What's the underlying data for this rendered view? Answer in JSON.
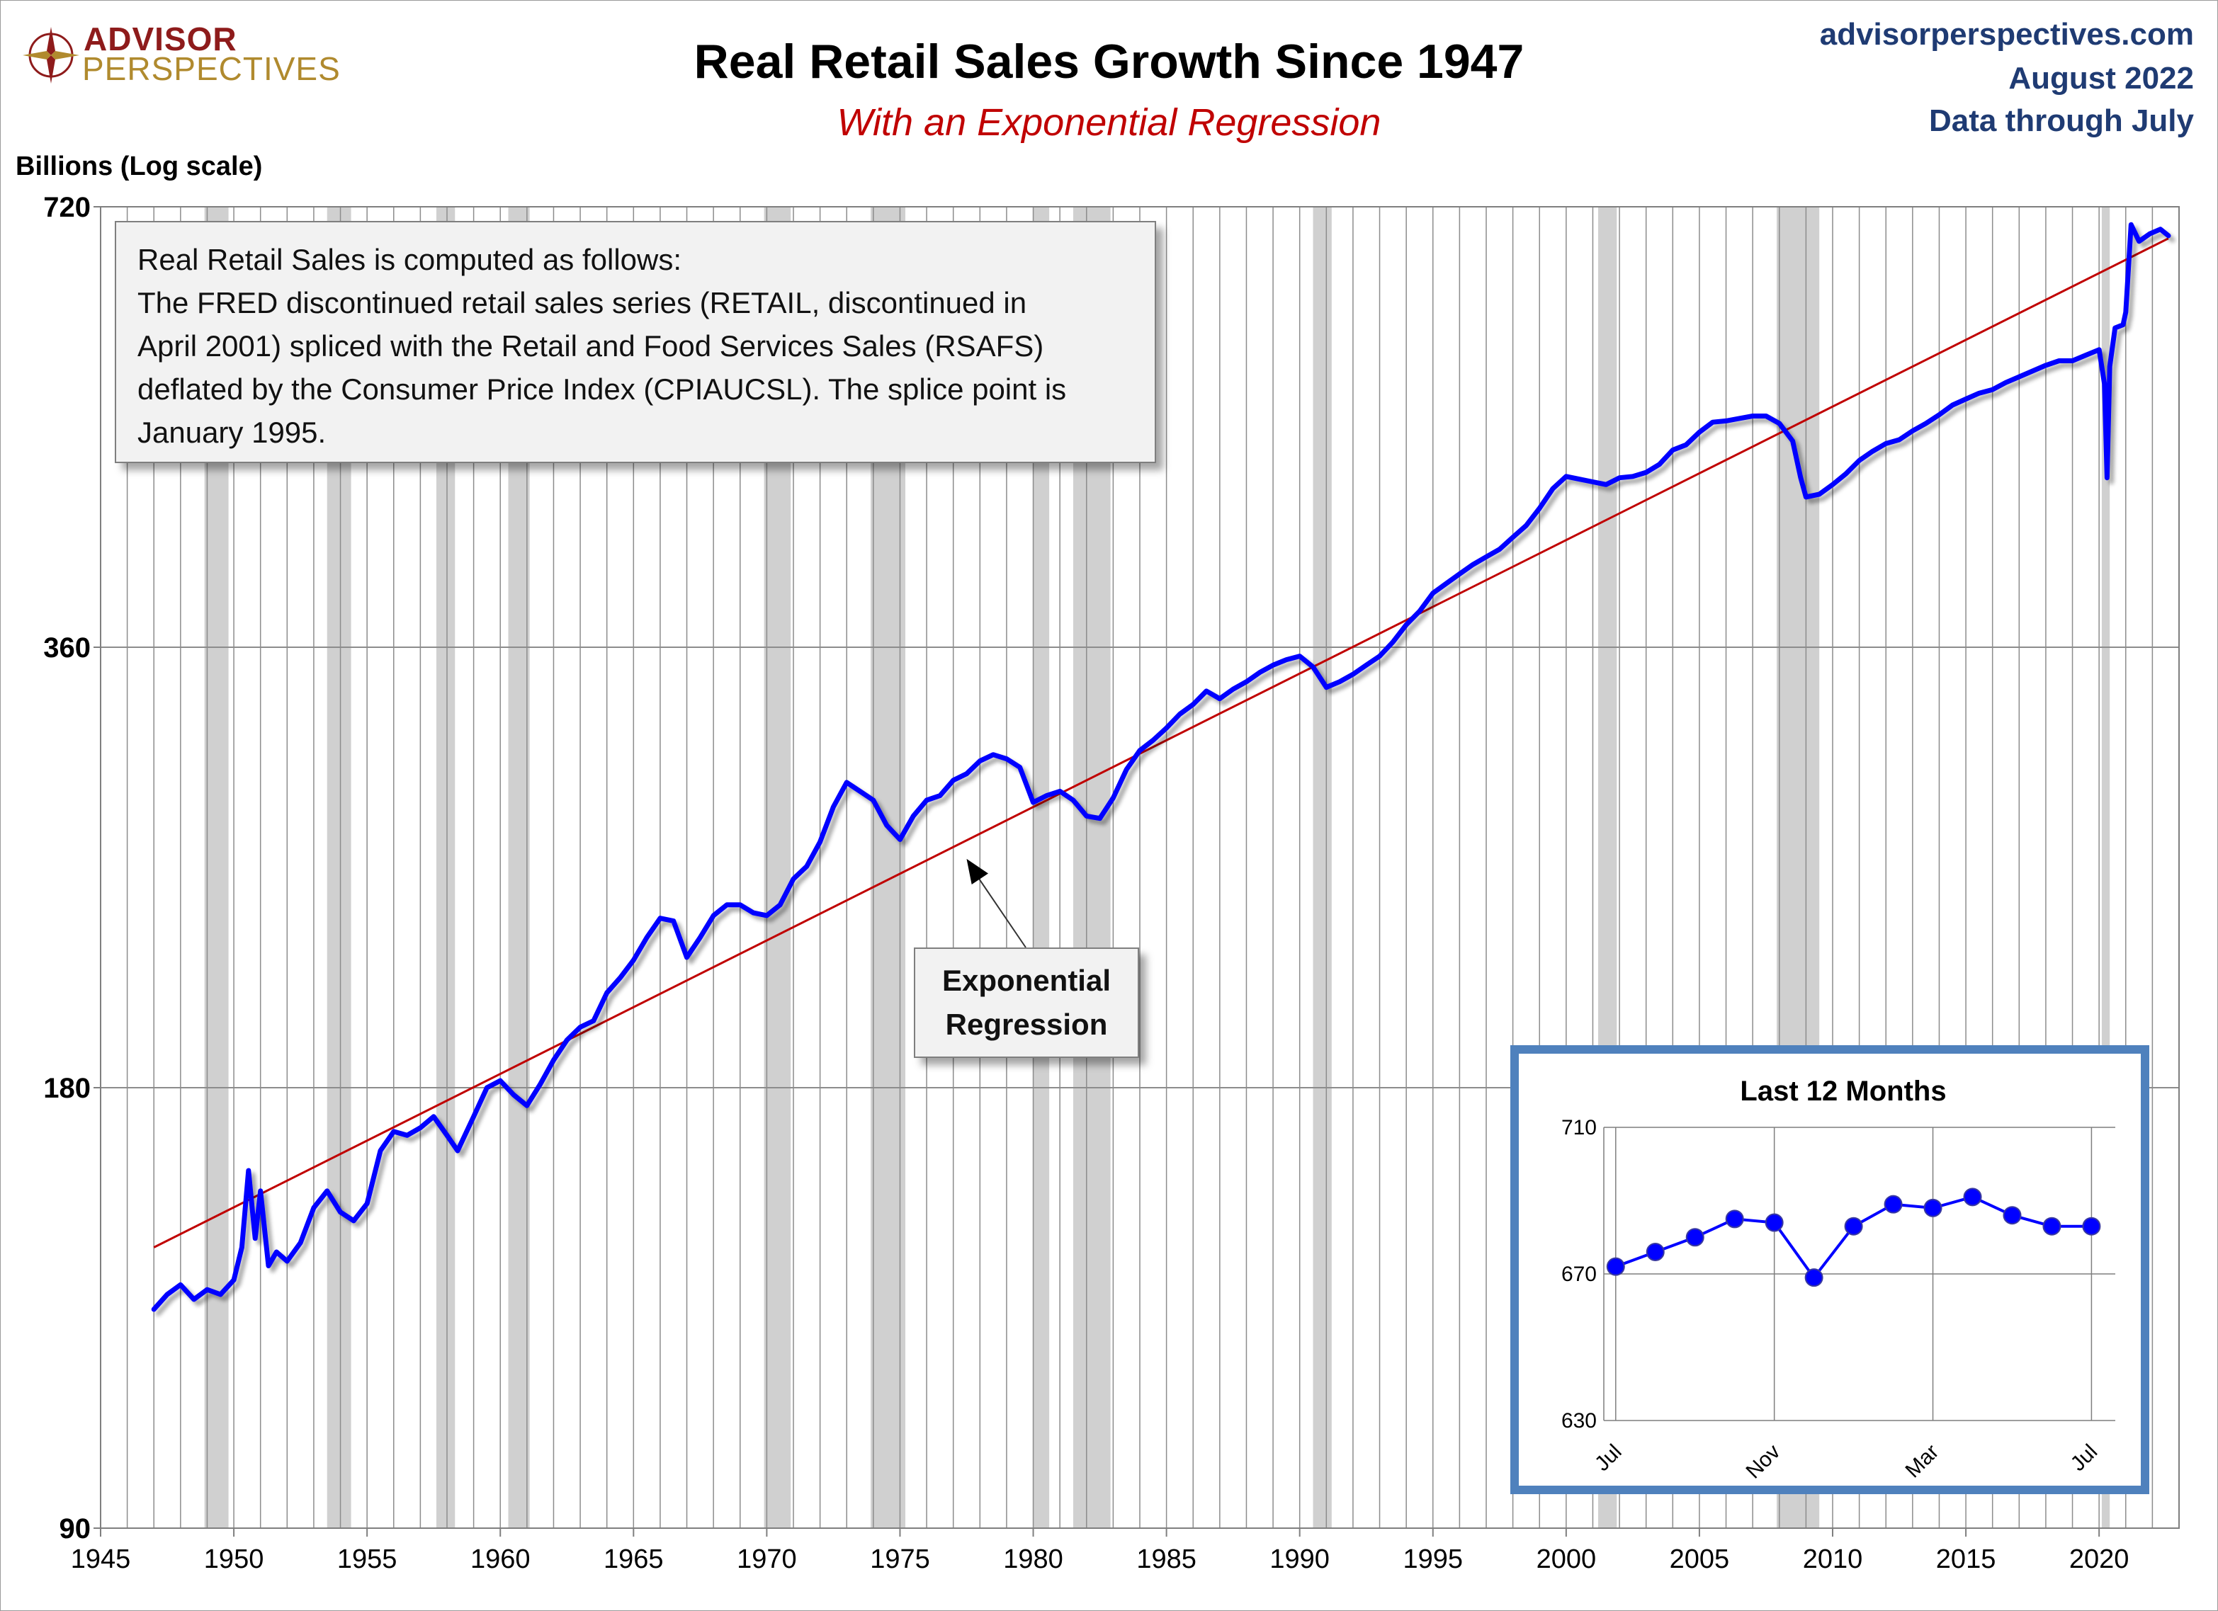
{
  "header": {
    "logo_top": "ADVISOR",
    "logo_bottom": "PERSPECTIVES",
    "title": "Real Retail Sales Growth Since 1947",
    "subtitle": "With an Exponential Regression",
    "source_site": "advisorperspectives.com",
    "source_date": "August 2022",
    "source_through": "Data through July"
  },
  "note": {
    "lines": [
      "Real Retail Sales is computed as follows:",
      "The FRED discontinued retail sales series (RETAIL, discontinued in",
      "April 2001) spliced with the Retail and Food Services Sales (RSAFS)",
      "deflated by the Consumer Price Index (CPIAUCSL). The splice point is",
      "January 1995."
    ]
  },
  "colors": {
    "series": "#0000ff",
    "regression": "#c00000",
    "recession": "#d0d0d0",
    "inset_border": "#4f81bd",
    "title_blue": "#1f3b73"
  },
  "chart_data": [
    {
      "type": "line",
      "title": "Real Retail Sales Growth Since 1947",
      "subtitle": "With an Exponential Regression",
      "ylabel": "Billions (Log scale)",
      "yscale": "log",
      "ylim": [
        90,
        720
      ],
      "xlim": [
        1945,
        2023
      ],
      "y_ticks": [
        90,
        180,
        360,
        720
      ],
      "x_ticks": [
        1945,
        1950,
        1955,
        1960,
        1965,
        1970,
        1975,
        1980,
        1985,
        1990,
        1995,
        2000,
        2005,
        2010,
        2015,
        2020
      ],
      "grid": "vertical lines yearly, horizontal at ticks",
      "annotation": {
        "text_lines": [
          "Exponential",
          "Regression"
        ],
        "points_to": [
          1977.5,
          258
        ]
      },
      "recessions": [
        [
          1948.9,
          1949.8
        ],
        [
          1953.5,
          1954.4
        ],
        [
          1957.6,
          1958.3
        ],
        [
          1960.3,
          1961.1
        ],
        [
          1969.9,
          1970.9
        ],
        [
          1973.9,
          1975.2
        ],
        [
          1980.0,
          1980.6
        ],
        [
          1981.5,
          1982.9
        ],
        [
          1990.5,
          1991.2
        ],
        [
          2001.2,
          2001.9
        ],
        [
          2007.9,
          2009.5
        ],
        [
          2020.1,
          2020.4
        ]
      ],
      "regression": {
        "x": [
          1947.0,
          2022.6
        ],
        "y": [
          140,
          685
        ]
      },
      "series": [
        {
          "name": "Real Retail Sales",
          "points": [
            [
              1947.0,
              127
            ],
            [
              1947.5,
              130
            ],
            [
              1948.0,
              132
            ],
            [
              1948.5,
              129
            ],
            [
              1949.0,
              131
            ],
            [
              1949.5,
              130
            ],
            [
              1950.0,
              133
            ],
            [
              1950.3,
              140
            ],
            [
              1950.55,
              158
            ],
            [
              1950.8,
              142
            ],
            [
              1951.0,
              153
            ],
            [
              1951.3,
              136
            ],
            [
              1951.6,
              139
            ],
            [
              1952.0,
              137
            ],
            [
              1952.5,
              141
            ],
            [
              1953.0,
              149
            ],
            [
              1953.5,
              153
            ],
            [
              1954.0,
              148
            ],
            [
              1954.5,
              146
            ],
            [
              1955.0,
              150
            ],
            [
              1955.5,
              163
            ],
            [
              1956.0,
              168
            ],
            [
              1956.5,
              167
            ],
            [
              1957.0,
              169
            ],
            [
              1957.5,
              172
            ],
            [
              1958.0,
              167
            ],
            [
              1958.4,
              163
            ],
            [
              1959.0,
              172
            ],
            [
              1959.5,
              180
            ],
            [
              1960.0,
              182
            ],
            [
              1960.5,
              178
            ],
            [
              1961.0,
              175
            ],
            [
              1961.5,
              181
            ],
            [
              1962.0,
              188
            ],
            [
              1962.5,
              194
            ],
            [
              1963.0,
              198
            ],
            [
              1963.5,
              200
            ],
            [
              1964.0,
              209
            ],
            [
              1964.5,
              214
            ],
            [
              1965.0,
              220
            ],
            [
              1965.5,
              228
            ],
            [
              1966.0,
              235
            ],
            [
              1966.5,
              234
            ],
            [
              1967.0,
              221
            ],
            [
              1967.5,
              228
            ],
            [
              1968.0,
              236
            ],
            [
              1968.5,
              240
            ],
            [
              1969.0,
              240
            ],
            [
              1969.5,
              237
            ],
            [
              1970.0,
              236
            ],
            [
              1970.5,
              240
            ],
            [
              1971.0,
              250
            ],
            [
              1971.5,
              255
            ],
            [
              1972.0,
              265
            ],
            [
              1972.5,
              280
            ],
            [
              1973.0,
              291
            ],
            [
              1973.5,
              287
            ],
            [
              1974.0,
              283
            ],
            [
              1974.5,
              272
            ],
            [
              1975.0,
              266
            ],
            [
              1975.5,
              276
            ],
            [
              1976.0,
              283
            ],
            [
              1976.5,
              285
            ],
            [
              1977.0,
              292
            ],
            [
              1977.5,
              295
            ],
            [
              1978.0,
              301
            ],
            [
              1978.5,
              304
            ],
            [
              1979.0,
              302
            ],
            [
              1979.5,
              298
            ],
            [
              1980.0,
              282
            ],
            [
              1980.5,
              285
            ],
            [
              1981.0,
              287
            ],
            [
              1981.5,
              283
            ],
            [
              1982.0,
              276
            ],
            [
              1982.5,
              275
            ],
            [
              1983.0,
              284
            ],
            [
              1983.5,
              297
            ],
            [
              1984.0,
              306
            ],
            [
              1984.5,
              311
            ],
            [
              1985.0,
              317
            ],
            [
              1985.5,
              324
            ],
            [
              1986.0,
              329
            ],
            [
              1986.5,
              336
            ],
            [
              1987.0,
              332
            ],
            [
              1987.5,
              337
            ],
            [
              1988.0,
              341
            ],
            [
              1988.5,
              346
            ],
            [
              1989.0,
              350
            ],
            [
              1989.5,
              353
            ],
            [
              1990.0,
              355
            ],
            [
              1990.5,
              349
            ],
            [
              1991.0,
              338
            ],
            [
              1991.5,
              341
            ],
            [
              1992.0,
              345
            ],
            [
              1992.5,
              350
            ],
            [
              1993.0,
              355
            ],
            [
              1993.5,
              363
            ],
            [
              1994.0,
              373
            ],
            [
              1994.5,
              381
            ],
            [
              1995.0,
              392
            ],
            [
              1995.5,
              398
            ],
            [
              1996.0,
              404
            ],
            [
              1996.5,
              410
            ],
            [
              1997.0,
              415
            ],
            [
              1997.5,
              420
            ],
            [
              1998.0,
              428
            ],
            [
              1998.5,
              436
            ],
            [
              1999.0,
              448
            ],
            [
              1999.5,
              462
            ],
            [
              2000.0,
              471
            ],
            [
              2000.5,
              469
            ],
            [
              2001.0,
              467
            ],
            [
              2001.5,
              465
            ],
            [
              2002.0,
              470
            ],
            [
              2002.5,
              471
            ],
            [
              2003.0,
              474
            ],
            [
              2003.5,
              480
            ],
            [
              2004.0,
              491
            ],
            [
              2004.5,
              495
            ],
            [
              2005.0,
              505
            ],
            [
              2005.5,
              513
            ],
            [
              2006.0,
              514
            ],
            [
              2006.5,
              516
            ],
            [
              2007.0,
              518
            ],
            [
              2007.5,
              518
            ],
            [
              2008.0,
              512
            ],
            [
              2008.5,
              498
            ],
            [
              2008.8,
              470
            ],
            [
              2009.0,
              456
            ],
            [
              2009.5,
              458
            ],
            [
              2010.0,
              465
            ],
            [
              2010.5,
              473
            ],
            [
              2011.0,
              483
            ],
            [
              2011.5,
              490
            ],
            [
              2012.0,
              496
            ],
            [
              2012.5,
              499
            ],
            [
              2013.0,
              506
            ],
            [
              2013.5,
              512
            ],
            [
              2014.0,
              519
            ],
            [
              2014.5,
              527
            ],
            [
              2015.0,
              532
            ],
            [
              2015.5,
              537
            ],
            [
              2016.0,
              540
            ],
            [
              2016.5,
              546
            ],
            [
              2017.0,
              551
            ],
            [
              2017.5,
              556
            ],
            [
              2018.0,
              561
            ],
            [
              2018.5,
              565
            ],
            [
              2019.0,
              565
            ],
            [
              2019.5,
              570
            ],
            [
              2020.0,
              575
            ],
            [
              2020.2,
              545
            ],
            [
              2020.3,
              470
            ],
            [
              2020.4,
              560
            ],
            [
              2020.6,
              595
            ],
            [
              2020.9,
              598
            ],
            [
              2021.0,
              610
            ],
            [
              2021.2,
              700
            ],
            [
              2021.5,
              682
            ],
            [
              2021.9,
              690
            ],
            [
              2022.3,
              695
            ],
            [
              2022.6,
              688
            ]
          ]
        }
      ]
    },
    {
      "type": "line",
      "title": "Last 12 Months",
      "ylim": [
        630,
        710
      ],
      "y_ticks": [
        630,
        670,
        710
      ],
      "x_labels": [
        "Jul",
        "Nov",
        "Mar",
        "Jul"
      ],
      "x_label_positions": [
        0,
        4,
        8,
        12
      ],
      "series": [
        {
          "name": "Last 12 Months",
          "values": [
            672,
            676,
            680,
            685,
            684,
            669,
            683,
            689,
            688,
            691,
            686,
            683,
            683
          ]
        }
      ]
    }
  ]
}
